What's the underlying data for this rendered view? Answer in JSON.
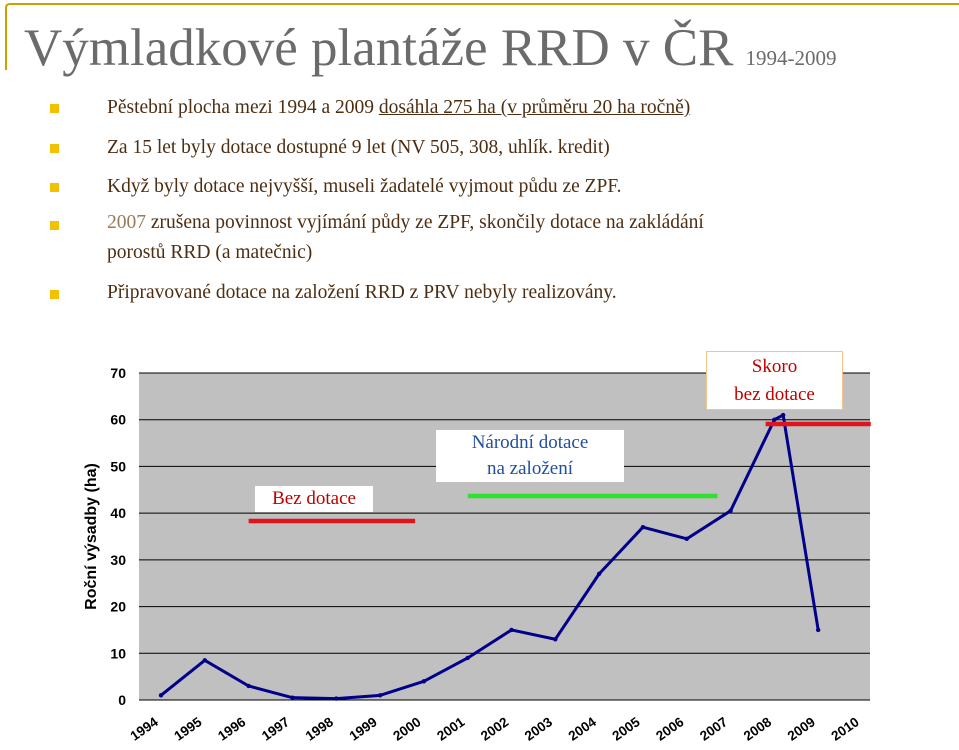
{
  "slide": {
    "title": "Výmladkové plantáže RRD v ČR",
    "title_years": "1994-2009",
    "bullets": [
      {
        "before": "Pěstební plocha mezi 1994 a 2009 ",
        "underlined": "dosáhla 275 ha (v průměru 20 ha ročně)"
      },
      {
        "text": "Za 15 let byly dotace dostupné 9 let (NV 505, 308, uhlík. kredit)"
      },
      {
        "text": "Když byly dotace nejvyšší, museli žadatelé vyjmout půdu ze ZPF."
      },
      {
        "year": "2007",
        "line1": " zrušena povinnost vyjímání půdy ze ZPF, skončily dotace na zakládání",
        "line2": "porostů RRD (a matečnic)"
      },
      {
        "text": "Připravované dotace na založení RRD z PRV nebyly realizovány."
      }
    ]
  },
  "colors": {
    "bullet": "#f2c200",
    "text": "#4d2e12",
    "line": "#00008b",
    "plot_bg": "#c0c0c0",
    "red": "#e0141c",
    "green": "#2fe02f"
  },
  "annotations": {
    "bez_dotace": "Bez dotace",
    "narodni_l1": "Národní dotace",
    "narodni_l2": "na založení",
    "skoro_l1": "Skoro",
    "skoro_l2": "bez dotace"
  },
  "chart_data": {
    "type": "line",
    "ylabel": "Roční výsadby (ha)",
    "xlabel": "",
    "ylim": [
      0,
      70
    ],
    "yticks": [
      0,
      10,
      20,
      30,
      40,
      50,
      60,
      70
    ],
    "grid": true,
    "x_tick_labels": [
      "1994",
      "1995",
      "1996",
      "1997",
      "1998",
      "1999",
      "2000",
      "2001",
      "2002",
      "2003",
      "2004",
      "2005",
      "2006",
      "2007",
      "2008",
      "2009",
      "2010"
    ],
    "x": [
      1994,
      1995,
      1996,
      1997,
      1998,
      1999,
      2000,
      2001,
      2002,
      2003,
      2004,
      2005,
      2006,
      2007,
      2008,
      2008.2,
      2009
    ],
    "values": [
      1,
      8.5,
      3,
      0.5,
      0.3,
      1,
      4,
      9,
      15,
      13,
      27,
      37,
      34.5,
      40.5,
      60,
      61,
      15
    ],
    "policy_periods": [
      {
        "label": "Bez dotace",
        "from": 1996,
        "to": 1999.8,
        "color": "red"
      },
      {
        "label": "Národní dotace na založení",
        "from": 2001,
        "to": 2006.7,
        "color": "green"
      },
      {
        "label": "Skoro bez dotace",
        "from": 2007.8,
        "to": 2010.2,
        "color": "red"
      }
    ]
  }
}
